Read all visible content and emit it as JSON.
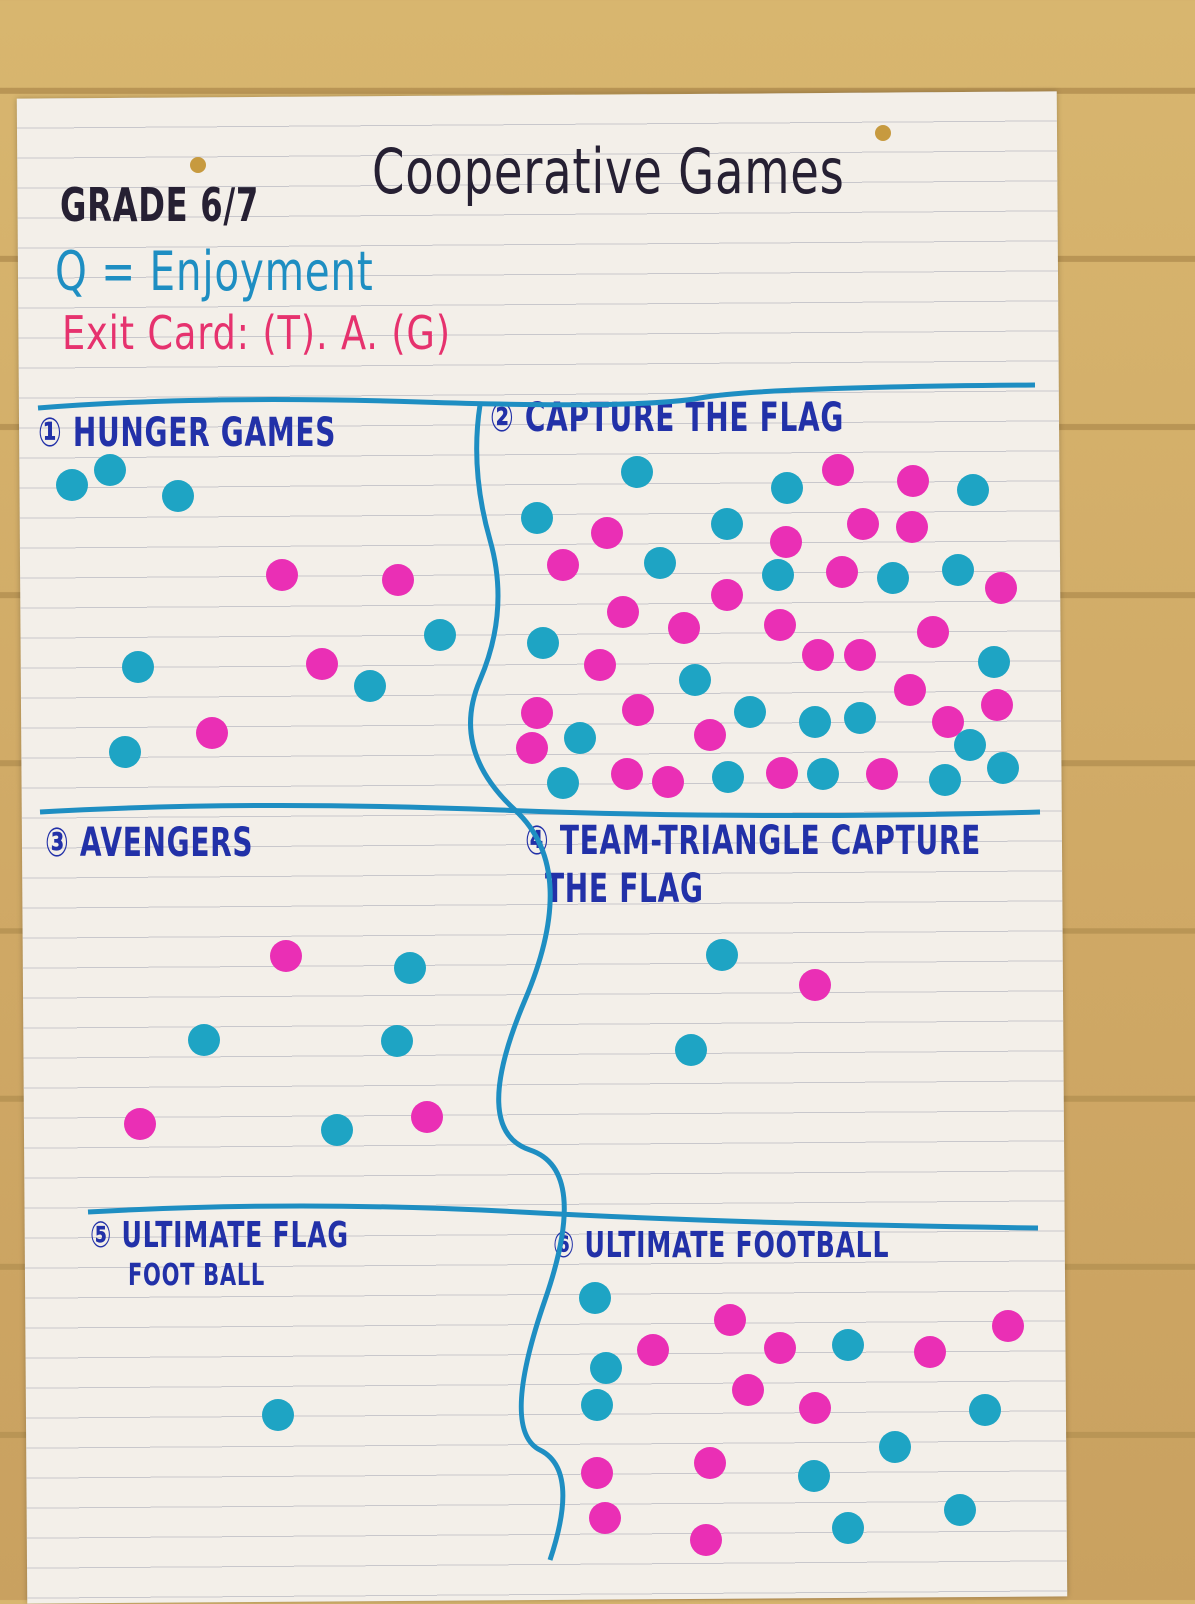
{
  "poster": {
    "grade": "GRADE 6/7",
    "title": "Cooperative Games",
    "question": "Q = Enjoyment",
    "exit_card": "Exit Card: (T). A. (G)"
  },
  "games": [
    {
      "label": "① HUNGER GAMES"
    },
    {
      "label": "② CAPTURE THE FLAG"
    },
    {
      "label": "③ AVENGERS"
    },
    {
      "label": "④ TEAM-TRIANGLE CAPTURE",
      "label2": "THE FLAG"
    },
    {
      "label": "⑤ ULTIMATE FLAG",
      "label2": "FOOT BALL"
    },
    {
      "label": "⑥ ULTIMATE FOOTBALL"
    }
  ],
  "colors": {
    "blue_dot": "#1ea4c4",
    "pink_dot": "#ea2fb5",
    "marker_blue": "#1e8ec2",
    "marker_pink": "#e6326e",
    "marker_navy": "#2231a8"
  }
}
